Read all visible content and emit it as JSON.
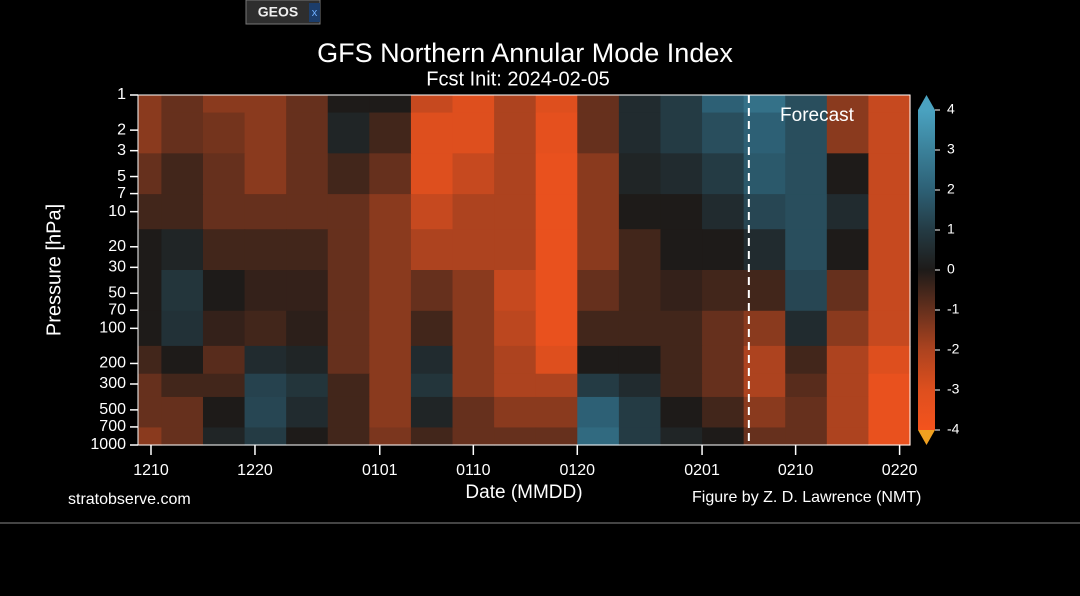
{
  "ui": {
    "tab": "GEOS",
    "tab_close": "x"
  },
  "chart_data": {
    "type": "contour",
    "title": "GFS Northern Annular Mode Index",
    "subtitle": "Fcst Init: 2024-02-05",
    "x_label": "Date (MMDD)",
    "y_label": "Pressure [hPa]",
    "source": "stratobserve.com",
    "credit": "Figure by Z. D. Lawrence (NMT)",
    "forecast": {
      "label": "Forecast",
      "x": 57.5
    },
    "xlim": [
      -1.25,
      73
    ],
    "xticks": [
      {
        "value": 0,
        "label": "1210"
      },
      {
        "value": 10,
        "label": "1220"
      },
      {
        "value": 22,
        "label": "0101"
      },
      {
        "value": 31,
        "label": "0110"
      },
      {
        "value": 41,
        "label": "0120"
      },
      {
        "value": 53,
        "label": "0201"
      },
      {
        "value": 62,
        "label": "0210"
      },
      {
        "value": 72,
        "label": "0220"
      }
    ],
    "ylim": [
      1000,
      1
    ],
    "log_y": true,
    "yticks": [
      1,
      2,
      3,
      5,
      7,
      10,
      20,
      30,
      50,
      70,
      100,
      200,
      300,
      500,
      700,
      1000
    ],
    "zlim": [
      -4,
      4
    ],
    "zticks": [
      -4,
      -3,
      -2,
      -1,
      0,
      1,
      2,
      3,
      4
    ],
    "colors": [
      "#f4531d",
      "#de4f1e",
      "#ad431f",
      "#66301d",
      "#1e1b19",
      "#243b44",
      "#2d6075",
      "#3b819a",
      "#4aa2c0"
    ],
    "x": [
      -1,
      3,
      7,
      11,
      15,
      19,
      23,
      27,
      31,
      35,
      39,
      43,
      47,
      51,
      55,
      59,
      63,
      67,
      71
    ],
    "y": [
      1,
      2,
      5,
      10,
      20,
      50,
      100,
      200,
      300,
      500,
      1000
    ],
    "z": [
      [
        -1.5,
        -1,
        -1.5,
        -1.5,
        -1,
        0,
        0,
        -2.5,
        -3,
        -2,
        -3,
        -1,
        0.5,
        1,
        2,
        2.5,
        1.5,
        -1.5,
        -2.5
      ],
      [
        -1.5,
        -1,
        -1.2,
        -1.5,
        -1,
        0.3,
        -0.5,
        -3,
        -3,
        -2,
        -3.3,
        -1,
        0.5,
        1,
        1.5,
        2,
        1.5,
        -1.5,
        -2.5
      ],
      [
        -1,
        -0.5,
        -1,
        -1.5,
        -1,
        -0.5,
        -1,
        -3,
        -2.5,
        -2,
        -3.5,
        -1.5,
        0.3,
        0.5,
        1,
        1.8,
        1.5,
        0,
        -2.5
      ],
      [
        -0.5,
        -0.5,
        -1,
        -1,
        -1,
        -1,
        -1.5,
        -2.5,
        -2,
        -2,
        -3.5,
        -1.5,
        0,
        0,
        0.5,
        1.3,
        1.5,
        0.5,
        -2.5
      ],
      [
        0,
        0.3,
        -0.5,
        -0.5,
        -0.5,
        -1,
        -1.5,
        -2,
        -2,
        -2,
        -3.5,
        -1.5,
        -0.5,
        0,
        0,
        0.5,
        1.5,
        0,
        -2.5
      ],
      [
        0,
        0.8,
        0,
        -0.3,
        -0.3,
        -1,
        -1.5,
        -1,
        -1.5,
        -2.5,
        -3.5,
        -1,
        -0.5,
        -0.3,
        -0.5,
        -0.5,
        1.3,
        -1,
        -2.5
      ],
      [
        0,
        0.7,
        -0.3,
        -0.5,
        -0.2,
        -1,
        -1.5,
        -0.5,
        -1.5,
        -2.3,
        -3.5,
        -0.5,
        -0.5,
        -0.5,
        -1,
        -1.5,
        0.5,
        -1.5,
        -2.5
      ],
      [
        -0.5,
        0,
        -0.8,
        0.5,
        0.3,
        -1,
        -1.5,
        0.5,
        -1.5,
        -2,
        -3,
        0,
        0,
        -0.5,
        -1,
        -2,
        -0.5,
        -2,
        -3
      ],
      [
        -1,
        -0.5,
        -0.5,
        1.2,
        0.8,
        -0.5,
        -1.5,
        0.8,
        -1.5,
        -2,
        -2,
        1,
        0.5,
        -0.5,
        -1,
        -2,
        -0.8,
        -2,
        -3.5
      ],
      [
        -1,
        -1,
        0,
        1.3,
        0.5,
        -0.5,
        -1.5,
        0.3,
        -1,
        -1.5,
        -1.5,
        2,
        1,
        0,
        -0.5,
        -1.5,
        -1,
        -2,
        -3.5
      ],
      [
        -1.5,
        -1,
        0.3,
        1,
        0,
        -0.5,
        -1.3,
        -0.5,
        -1,
        -1,
        -1,
        2.3,
        1,
        0.3,
        0,
        -1,
        -1,
        -2,
        -3.5
      ]
    ]
  }
}
